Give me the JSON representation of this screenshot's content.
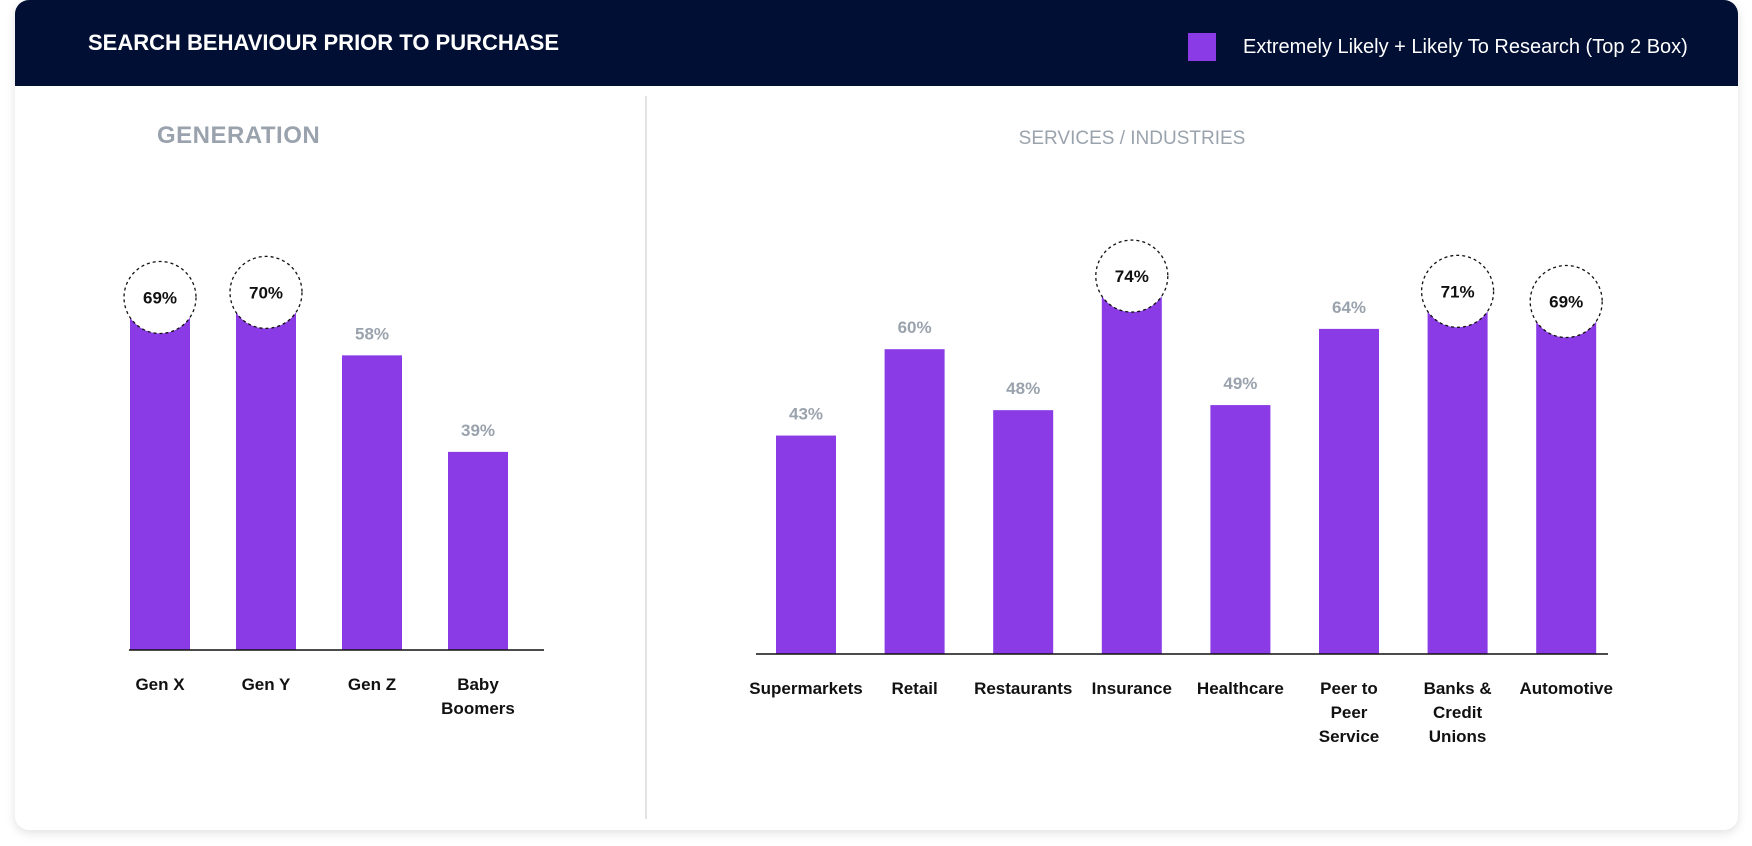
{
  "header": {
    "title": "SEARCH BEHAVIOUR PRIOR TO PURCHASE",
    "legend_label": "Extremely Likely + Likely To Research (Top 2 Box)"
  },
  "colors": {
    "header_bg": "#000f33",
    "bar": "#8a3be6",
    "muted_text": "#9aa3ad"
  },
  "chart_data": [
    {
      "type": "bar",
      "title": "GENERATION",
      "categories": [
        [
          "Gen X"
        ],
        [
          "Gen Y"
        ],
        [
          "Gen Z"
        ],
        [
          "Baby",
          "Boomers"
        ]
      ],
      "values": [
        69,
        70,
        58,
        39
      ],
      "value_labels": [
        "69%",
        "70%",
        "58%",
        "39%"
      ],
      "highlighted": [
        true,
        true,
        false,
        false
      ],
      "ylim": [
        0,
        100
      ],
      "grid": false
    },
    {
      "type": "bar",
      "title": "SERVICES / INDUSTRIES",
      "categories": [
        [
          "Supermarkets"
        ],
        [
          "Retail"
        ],
        [
          "Restaurants"
        ],
        [
          "Insurance"
        ],
        [
          "Healthcare"
        ],
        [
          "Peer to",
          "Peer",
          "Service"
        ],
        [
          "Banks &",
          "Credit",
          "Unions"
        ],
        [
          "Automotive"
        ]
      ],
      "values": [
        43,
        60,
        48,
        74,
        49,
        64,
        71,
        69
      ],
      "value_labels": [
        "43%",
        "60%",
        "48%",
        "74%",
        "49%",
        "64%",
        "71%",
        "69%"
      ],
      "highlighted": [
        false,
        false,
        false,
        true,
        false,
        false,
        true,
        true
      ],
      "ylim": [
        0,
        100
      ],
      "grid": false
    }
  ]
}
